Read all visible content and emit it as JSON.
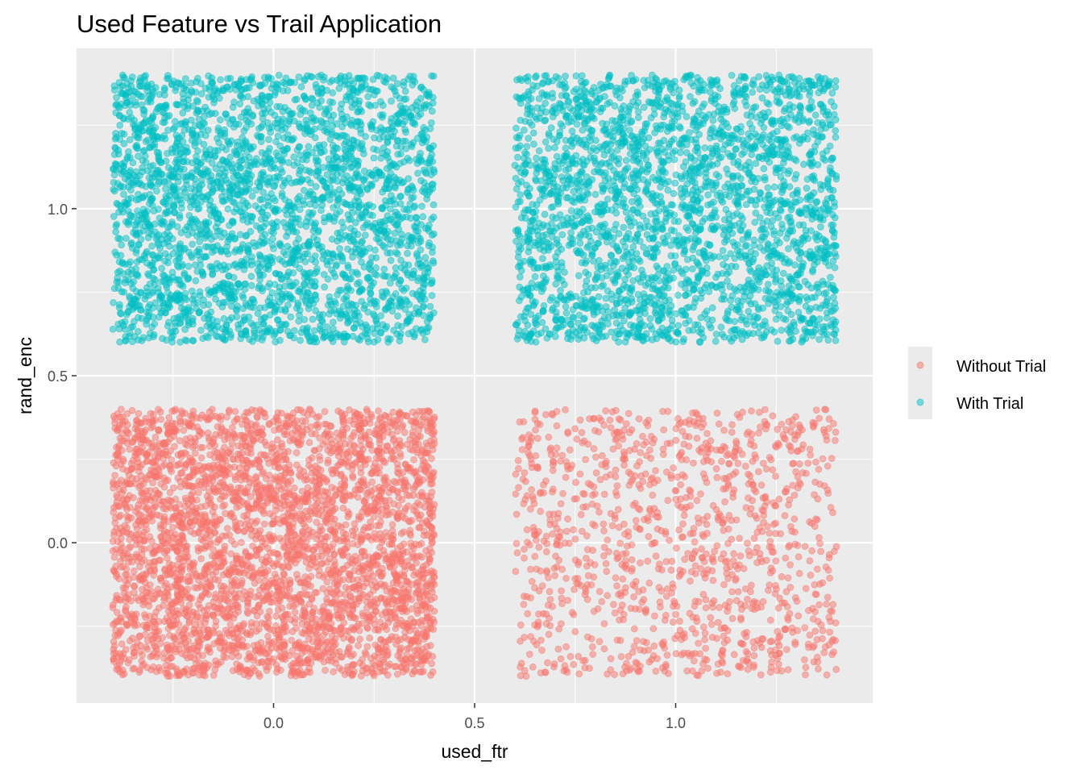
{
  "chart_data": {
    "type": "scatter",
    "title": "Used Feature vs Trail Application",
    "xlabel": "used_ftr",
    "ylabel": "rand_enc",
    "xlim": [
      -0.49,
      1.49
    ],
    "ylim": [
      -0.48,
      1.48
    ],
    "x_ticks": [
      0.0,
      0.5,
      1.0
    ],
    "x_tick_labels": [
      "0.0",
      "0.5",
      "1.0"
    ],
    "y_ticks": [
      0.0,
      0.5,
      1.0
    ],
    "y_tick_labels": [
      "0.0",
      "0.5",
      "1.0"
    ],
    "grid": true,
    "legend_position": "right",
    "series": [
      {
        "name": "Without Trial",
        "color": "#f8766d",
        "clusters": [
          {
            "x_center": 0,
            "y_center": 0,
            "jitter": 0.4,
            "count": 3600
          },
          {
            "x_center": 1,
            "y_center": 0,
            "jitter": 0.4,
            "count": 1150
          }
        ]
      },
      {
        "name": "With Trial",
        "color": "#00bfc4",
        "clusters": [
          {
            "x_center": 0,
            "y_center": 1,
            "jitter": 0.4,
            "count": 2900
          },
          {
            "x_center": 1,
            "y_center": 1,
            "jitter": 0.4,
            "count": 2700
          }
        ]
      }
    ]
  }
}
